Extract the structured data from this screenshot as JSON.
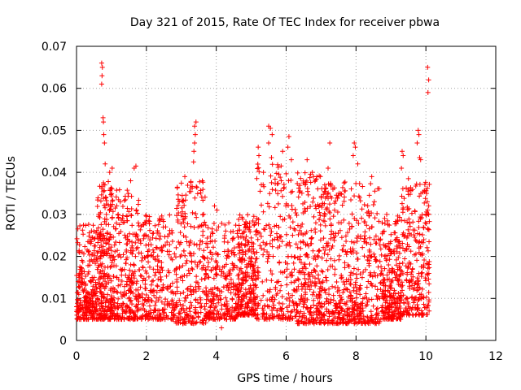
{
  "chart_data": {
    "type": "scatter",
    "title": "Day 321 of 2015, Rate Of TEC Index for receiver pbwa",
    "xlabel": "GPS time / hours",
    "ylabel": "ROTI / TECUs",
    "xlim": [
      0,
      12
    ],
    "ylim": [
      0,
      0.07
    ],
    "grid": true,
    "marker": "+",
    "point_color": "#ff0000",
    "x_ticks": [
      "0",
      "2",
      "4",
      "6",
      "8",
      "10",
      "12"
    ],
    "y_ticks": [
      "0",
      "0.01",
      "0.02",
      "0.03",
      "0.04",
      "0.05",
      "0.06",
      "0.07"
    ],
    "data_x_range_hours": [
      0,
      10.1
    ],
    "typical_range": [
      0.005,
      0.025
    ],
    "notable_points": [
      {
        "x": 0.72,
        "y": 0.066
      },
      {
        "x": 0.74,
        "y": 0.065
      },
      {
        "x": 0.73,
        "y": 0.063
      },
      {
        "x": 0.72,
        "y": 0.061
      },
      {
        "x": 0.76,
        "y": 0.053
      },
      {
        "x": 0.77,
        "y": 0.052
      },
      {
        "x": 0.78,
        "y": 0.049
      },
      {
        "x": 0.8,
        "y": 0.047
      },
      {
        "x": 0.82,
        "y": 0.042
      },
      {
        "x": 0.95,
        "y": 0.04
      },
      {
        "x": 1.02,
        "y": 0.041
      },
      {
        "x": 1.65,
        "y": 0.041
      },
      {
        "x": 1.7,
        "y": 0.0415
      },
      {
        "x": 1.55,
        "y": 0.038
      },
      {
        "x": 3.38,
        "y": 0.051
      },
      {
        "x": 3.42,
        "y": 0.052
      },
      {
        "x": 3.4,
        "y": 0.049
      },
      {
        "x": 3.38,
        "y": 0.047
      },
      {
        "x": 3.36,
        "y": 0.045
      },
      {
        "x": 3.35,
        "y": 0.0425
      },
      {
        "x": 3.1,
        "y": 0.039
      },
      {
        "x": 3.6,
        "y": 0.038
      },
      {
        "x": 4.15,
        "y": 0.003
      },
      {
        "x": 3.95,
        "y": 0.032
      },
      {
        "x": 4.02,
        "y": 0.031
      },
      {
        "x": 5.2,
        "y": 0.046
      },
      {
        "x": 5.22,
        "y": 0.044
      },
      {
        "x": 5.5,
        "y": 0.051
      },
      {
        "x": 5.55,
        "y": 0.0505
      },
      {
        "x": 5.6,
        "y": 0.049
      },
      {
        "x": 5.5,
        "y": 0.047
      },
      {
        "x": 5.58,
        "y": 0.0435
      },
      {
        "x": 5.35,
        "y": 0.04
      },
      {
        "x": 5.9,
        "y": 0.045
      },
      {
        "x": 6.08,
        "y": 0.0485
      },
      {
        "x": 6.05,
        "y": 0.046
      },
      {
        "x": 6.15,
        "y": 0.043
      },
      {
        "x": 6.6,
        "y": 0.043
      },
      {
        "x": 6.75,
        "y": 0.04
      },
      {
        "x": 7.25,
        "y": 0.047
      },
      {
        "x": 7.2,
        "y": 0.041
      },
      {
        "x": 7.95,
        "y": 0.047
      },
      {
        "x": 7.98,
        "y": 0.046
      },
      {
        "x": 7.92,
        "y": 0.044
      },
      {
        "x": 8.05,
        "y": 0.042
      },
      {
        "x": 8.45,
        "y": 0.039
      },
      {
        "x": 9.32,
        "y": 0.045
      },
      {
        "x": 9.35,
        "y": 0.044
      },
      {
        "x": 9.3,
        "y": 0.041
      },
      {
        "x": 9.5,
        "y": 0.0385
      },
      {
        "x": 9.78,
        "y": 0.05
      },
      {
        "x": 9.8,
        "y": 0.049
      },
      {
        "x": 9.75,
        "y": 0.047
      },
      {
        "x": 9.82,
        "y": 0.0435
      },
      {
        "x": 9.85,
        "y": 0.043
      },
      {
        "x": 10.05,
        "y": 0.065
      },
      {
        "x": 10.08,
        "y": 0.062
      },
      {
        "x": 10.06,
        "y": 0.059
      },
      {
        "x": 10.02,
        "y": 0.035
      },
      {
        "x": 10.04,
        "y": 0.033
      },
      {
        "x": 10.05,
        "y": 0.031
      },
      {
        "x": 10.08,
        "y": 0.03
      },
      {
        "x": 0.05,
        "y": 0.007
      },
      {
        "x": 2.05,
        "y": 0.005
      },
      {
        "x": 3.05,
        "y": 0.004
      },
      {
        "x": 6.8,
        "y": 0.004
      },
      {
        "x": 7.95,
        "y": 0.004
      }
    ],
    "segments": [
      {
        "x": [
          0.0,
          0.6
        ],
        "y": [
          0.005,
          0.028
        ]
      },
      {
        "x": [
          0.6,
          1.05
        ],
        "y": [
          0.005,
          0.038
        ]
      },
      {
        "x": [
          1.05,
          1.8
        ],
        "y": [
          0.005,
          0.036
        ]
      },
      {
        "x": [
          1.8,
          2.8
        ],
        "y": [
          0.005,
          0.03
        ]
      },
      {
        "x": [
          2.8,
          3.7
        ],
        "y": [
          0.004,
          0.038
        ]
      },
      {
        "x": [
          3.7,
          4.6
        ],
        "y": [
          0.005,
          0.028
        ]
      },
      {
        "x": [
          4.6,
          5.15
        ],
        "y": [
          0.006,
          0.03
        ]
      },
      {
        "x": [
          5.15,
          6.3
        ],
        "y": [
          0.005,
          0.042
        ]
      },
      {
        "x": [
          6.3,
          7.0
        ],
        "y": [
          0.004,
          0.04
        ]
      },
      {
        "x": [
          7.0,
          7.8
        ],
        "y": [
          0.004,
          0.038
        ]
      },
      {
        "x": [
          7.8,
          8.7
        ],
        "y": [
          0.004,
          0.038
        ]
      },
      {
        "x": [
          8.7,
          9.3
        ],
        "y": [
          0.005,
          0.03
        ]
      },
      {
        "x": [
          9.3,
          10.1
        ],
        "y": [
          0.006,
          0.038
        ]
      }
    ],
    "points_per_segment": 260
  }
}
